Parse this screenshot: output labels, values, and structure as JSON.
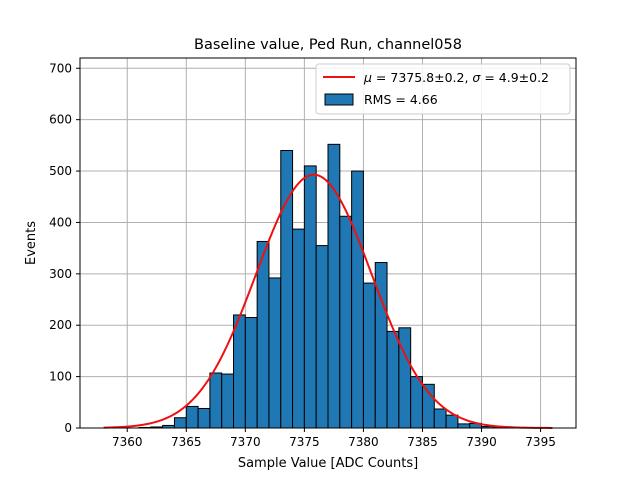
{
  "chart_data": {
    "type": "bar",
    "title": "Baseline value, Ped Run, channel058",
    "xlabel": "Sample Value [ADC Counts]",
    "ylabel": "Events",
    "xlim": [
      7356,
      7398
    ],
    "ylim": [
      0,
      720
    ],
    "xticks": [
      7360,
      7365,
      7370,
      7375,
      7380,
      7385,
      7390,
      7395
    ],
    "yticks": [
      0,
      100,
      200,
      300,
      400,
      500,
      600,
      700
    ],
    "grid": true,
    "legend_location": "top-right",
    "bin_width": 1,
    "histogram": {
      "name": "RMS = 4.66",
      "color": "#1f77b4",
      "bin_starts": [
        7361,
        7362,
        7363,
        7364,
        7365,
        7366,
        7367,
        7368,
        7369,
        7370,
        7371,
        7372,
        7373,
        7374,
        7375,
        7376,
        7377,
        7378,
        7379,
        7380,
        7381,
        7382,
        7383,
        7384,
        7385,
        7386,
        7387,
        7388,
        7389,
        7390,
        7391
      ],
      "values": [
        1,
        2,
        5,
        20,
        42,
        38,
        107,
        105,
        220,
        215,
        363,
        292,
        540,
        387,
        510,
        355,
        552,
        412,
        500,
        282,
        322,
        188,
        195,
        100,
        85,
        37,
        25,
        8,
        9,
        3,
        1
      ]
    },
    "fit": {
      "name": "fit",
      "label_mu_symbol": "μ",
      "label_sigma_symbol": "σ",
      "label_mu_value": " = 7375.8±0.2, ",
      "label_sigma_value": " = 4.9±0.2",
      "color": "#ee1111",
      "mu": 7375.8,
      "sigma": 4.9,
      "amplitude": 493,
      "x_range": [
        7358,
        7396
      ]
    }
  }
}
